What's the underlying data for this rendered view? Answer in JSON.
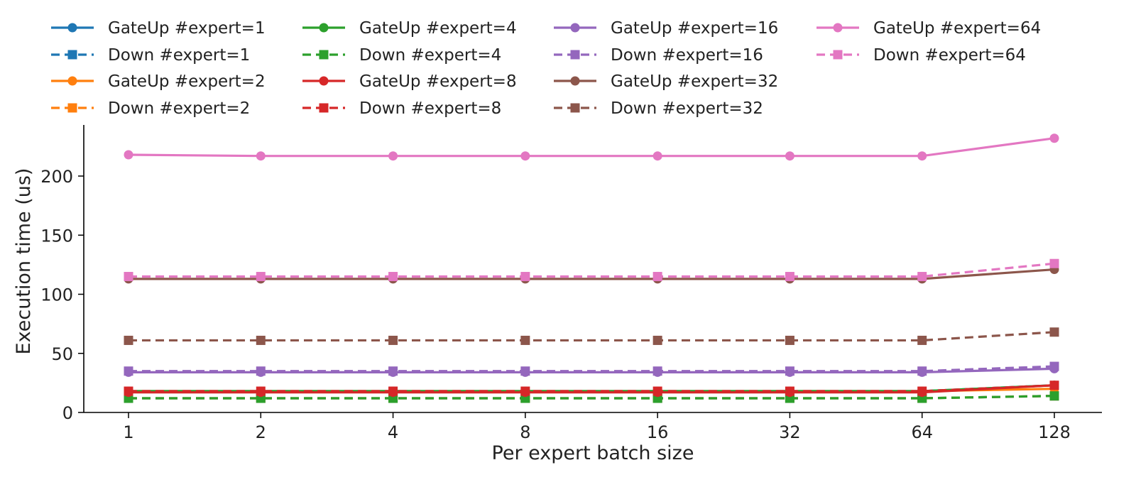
{
  "chart_data": {
    "type": "line",
    "xlabel": "Per expert batch size",
    "ylabel": "Execution time (us)",
    "categories": [
      "1",
      "2",
      "4",
      "8",
      "16",
      "32",
      "64",
      "128"
    ],
    "ylim": [
      0,
      240
    ],
    "yticks": [
      0,
      50,
      100,
      150,
      200
    ],
    "grid": false,
    "legend_position": "top",
    "series": [
      {
        "name": "GateUp #expert=1",
        "color": "#1f77b4",
        "style": "solid",
        "marker": "circle",
        "values": [
          18,
          18,
          18,
          18,
          18,
          18,
          18,
          23
        ]
      },
      {
        "name": "Down #expert=1",
        "color": "#1f77b4",
        "style": "dashed",
        "marker": "square",
        "values": [
          12,
          12,
          12,
          12,
          12,
          12,
          12,
          14
        ]
      },
      {
        "name": "GateUp #expert=2",
        "color": "#ff7f0e",
        "style": "solid",
        "marker": "circle",
        "values": [
          18,
          18,
          18,
          18,
          18,
          18,
          18,
          20
        ]
      },
      {
        "name": "Down #expert=2",
        "color": "#ff7f0e",
        "style": "dashed",
        "marker": "square",
        "values": [
          12,
          12,
          12,
          12,
          12,
          12,
          12,
          14
        ]
      },
      {
        "name": "GateUp #expert=4",
        "color": "#2ca02c",
        "style": "solid",
        "marker": "circle",
        "values": [
          18,
          18,
          18,
          18,
          18,
          18,
          18,
          23
        ]
      },
      {
        "name": "Down #expert=4",
        "color": "#2ca02c",
        "style": "dashed",
        "marker": "square",
        "values": [
          12,
          12,
          12,
          12,
          12,
          12,
          12,
          14
        ]
      },
      {
        "name": "GateUp #expert=8",
        "color": "#d62728",
        "style": "solid",
        "marker": "circle",
        "values": [
          17,
          17,
          17,
          17,
          17,
          17,
          17,
          23
        ]
      },
      {
        "name": "Down #expert=8",
        "color": "#d62728",
        "style": "dashed",
        "marker": "square",
        "values": [
          18,
          18,
          18,
          18,
          18,
          18,
          18,
          23
        ]
      },
      {
        "name": "GateUp #expert=16",
        "color": "#9467bd",
        "style": "solid",
        "marker": "circle",
        "values": [
          34,
          34,
          34,
          34,
          34,
          34,
          34,
          37
        ]
      },
      {
        "name": "Down #expert=16",
        "color": "#9467bd",
        "style": "dashed",
        "marker": "square",
        "values": [
          35,
          35,
          35,
          35,
          35,
          35,
          35,
          39
        ]
      },
      {
        "name": "GateUp #expert=32",
        "color": "#8c564b",
        "style": "solid",
        "marker": "circle",
        "values": [
          113,
          113,
          113,
          113,
          113,
          113,
          113,
          121
        ]
      },
      {
        "name": "Down #expert=32",
        "color": "#8c564b",
        "style": "dashed",
        "marker": "square",
        "values": [
          61,
          61,
          61,
          61,
          61,
          61,
          61,
          68
        ]
      },
      {
        "name": "GateUp #expert=64",
        "color": "#e377c2",
        "style": "solid",
        "marker": "circle",
        "values": [
          218,
          217,
          217,
          217,
          217,
          217,
          217,
          232
        ]
      },
      {
        "name": "Down #expert=64",
        "color": "#e377c2",
        "style": "dashed",
        "marker": "square",
        "values": [
          115,
          115,
          115,
          115,
          115,
          115,
          115,
          126
        ]
      }
    ]
  }
}
